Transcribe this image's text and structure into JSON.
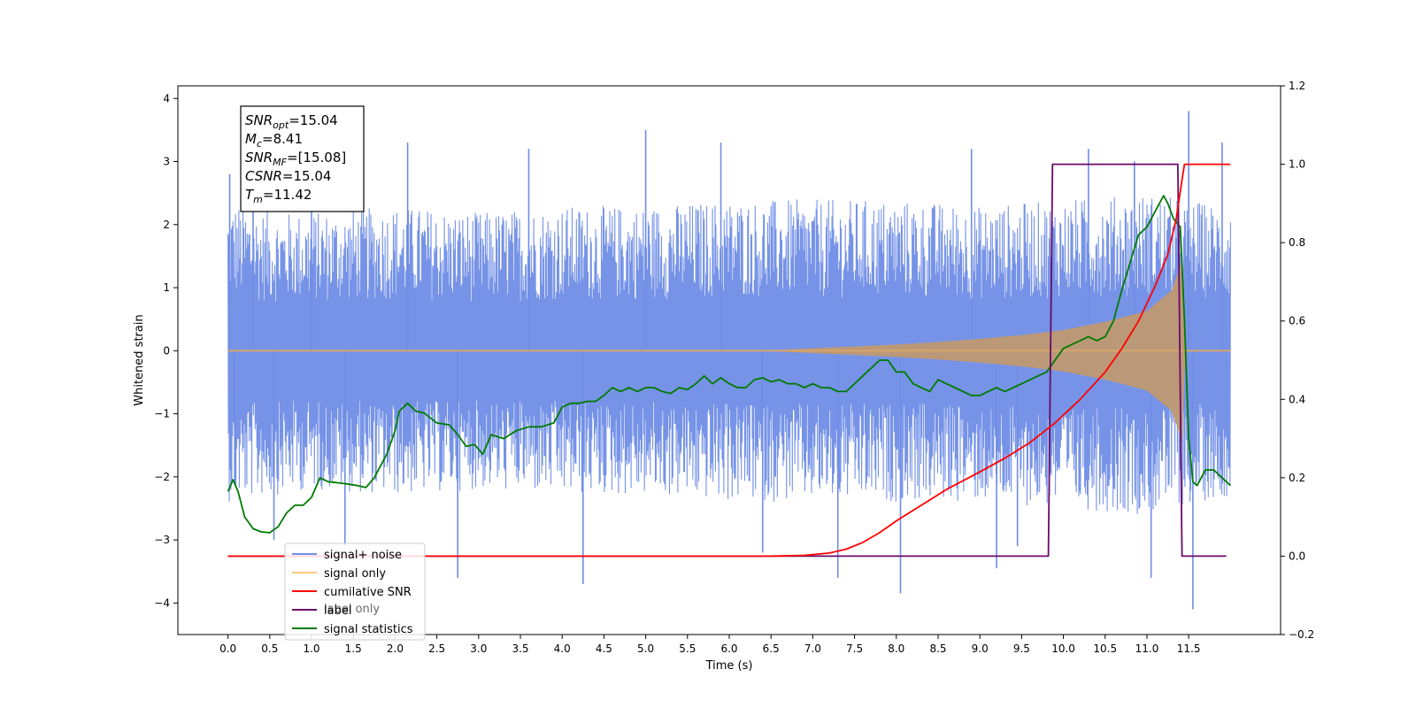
{
  "chart_data": {
    "type": "line",
    "xlabel": "Time (s)",
    "ylabel": "Whitened strain",
    "xlim": [
      -0.6,
      12.6
    ],
    "ylim": [
      -4.5,
      4.2
    ],
    "y2lim": [
      -0.2,
      1.2
    ],
    "xticks": [
      0.0,
      0.5,
      1.0,
      1.5,
      2.0,
      2.5,
      3.0,
      3.5,
      4.0,
      4.5,
      5.0,
      5.5,
      6.0,
      6.5,
      7.0,
      7.5,
      8.0,
      8.5,
      9.0,
      9.5,
      10.0,
      10.5,
      11.0,
      11.5
    ],
    "xtick_labels": [
      "0.0",
      "0.5",
      "1.0",
      "1.5",
      "2.0",
      "2.5",
      "3.0",
      "3.5",
      "4.0",
      "4.5",
      "5.0",
      "5.5",
      "6.0",
      "6.5",
      "7.0",
      "7.5",
      "8.0",
      "8.5",
      "9.0",
      "9.5",
      "10.0",
      "10.5",
      "11.0",
      "11.5"
    ],
    "yticks": [
      -4,
      -3,
      -2,
      -1,
      0,
      1,
      2,
      3,
      4
    ],
    "ytick_labels": [
      "−4",
      "−3",
      "−2",
      "−1",
      "0",
      "1",
      "2",
      "3",
      "4"
    ],
    "y2ticks": [
      -0.2,
      0.0,
      0.2,
      0.4,
      0.6,
      0.8,
      1.0,
      1.2
    ],
    "y2tick_labels": [
      "−0.2",
      "0.0",
      "0.2",
      "0.4",
      "0.6",
      "0.8",
      "1.0",
      "1.2"
    ],
    "grid": false,
    "legend_placement": "lower-left",
    "legend": [
      {
        "label": "signal+ noise",
        "color": "#6f8de6"
      },
      {
        "label": "signal only",
        "color": "#ffc87a"
      },
      {
        "label": "cumilative SNR",
        "color": "#ff0000"
      },
      {
        "label": "label",
        "color": "#6a0a6a"
      },
      {
        "label": "signal statistics",
        "color": "#007a00"
      }
    ],
    "ghost_legend_text": "label only",
    "annotation": [
      {
        "sym": "SNR",
        "sub": "opt",
        "value": "=15.04"
      },
      {
        "sym": "M",
        "sub": "c",
        "value": "=8.41"
      },
      {
        "sym": "SNR",
        "sub": "MF",
        "value": "=[15.08]"
      },
      {
        "sym": "CSNR",
        "sub": "",
        "value": "=15.04"
      },
      {
        "sym": "T",
        "sub": "m",
        "value": "=11.42"
      }
    ],
    "series": [
      {
        "name": "signal+ noise",
        "axis": "left",
        "color": "#6f8de6",
        "x_range": [
          0.0,
          12.0
        ],
        "sample_step": 0.005,
        "band_upper": [
          [
            0.0,
            2.4
          ],
          [
            0.5,
            2.2
          ],
          [
            1.0,
            2.2
          ],
          [
            2.0,
            2.3
          ],
          [
            3.0,
            2.2
          ],
          [
            4.0,
            2.3
          ],
          [
            5.0,
            2.3
          ],
          [
            6.0,
            2.4
          ],
          [
            7.0,
            2.4
          ],
          [
            8.0,
            2.4
          ],
          [
            9.0,
            2.3
          ],
          [
            10.0,
            2.4
          ],
          [
            11.0,
            2.5
          ],
          [
            12.0,
            2.3
          ]
        ],
        "band_lower": [
          [
            0.0,
            -2.4
          ],
          [
            0.5,
            -2.3
          ],
          [
            1.0,
            -2.2
          ],
          [
            2.0,
            -2.3
          ],
          [
            3.0,
            -2.2
          ],
          [
            4.0,
            -2.3
          ],
          [
            5.0,
            -2.3
          ],
          [
            6.0,
            -2.4
          ],
          [
            7.0,
            -2.4
          ],
          [
            8.0,
            -2.4
          ],
          [
            9.0,
            -2.4
          ],
          [
            10.0,
            -2.5
          ],
          [
            11.0,
            -2.6
          ],
          [
            12.0,
            -2.3
          ]
        ],
        "spikes": [
          [
            0.02,
            2.8
          ],
          [
            0.08,
            -2.1
          ],
          [
            0.3,
            2.5
          ],
          [
            0.55,
            -3.0
          ],
          [
            1.0,
            2.7
          ],
          [
            1.4,
            -3.1
          ],
          [
            2.15,
            3.3
          ],
          [
            2.75,
            -3.6
          ],
          [
            3.6,
            3.2
          ],
          [
            4.25,
            -3.7
          ],
          [
            5.0,
            3.5
          ],
          [
            5.9,
            3.3
          ],
          [
            6.4,
            -3.2
          ],
          [
            7.3,
            -3.6
          ],
          [
            8.05,
            -3.85
          ],
          [
            8.9,
            3.2
          ],
          [
            9.2,
            -3.45
          ],
          [
            9.45,
            -3.1
          ],
          [
            10.3,
            3.2
          ],
          [
            10.85,
            3.0
          ],
          [
            11.05,
            -3.6
          ],
          [
            11.5,
            3.8
          ],
          [
            11.55,
            -4.1
          ],
          [
            11.9,
            3.3
          ]
        ]
      },
      {
        "name": "signal only",
        "axis": "left",
        "color": "#c8a06e",
        "x_range": [
          0.0,
          12.0
        ],
        "envelope": [
          [
            0.0,
            0.0
          ],
          [
            6.5,
            0.0
          ],
          [
            7.0,
            0.03
          ],
          [
            7.5,
            0.06
          ],
          [
            8.0,
            0.09
          ],
          [
            8.5,
            0.13
          ],
          [
            9.0,
            0.18
          ],
          [
            9.5,
            0.24
          ],
          [
            10.0,
            0.32
          ],
          [
            10.5,
            0.45
          ],
          [
            11.0,
            0.62
          ],
          [
            11.3,
            0.95
          ],
          [
            11.42,
            1.4
          ],
          [
            11.45,
            0.0
          ],
          [
            12.0,
            0.0
          ]
        ]
      },
      {
        "name": "cumilative SNR",
        "axis": "right",
        "color": "#ff0000",
        "points": [
          [
            0.0,
            0.0
          ],
          [
            6.5,
            0.0
          ],
          [
            6.9,
            0.002
          ],
          [
            7.2,
            0.008
          ],
          [
            7.4,
            0.018
          ],
          [
            7.6,
            0.035
          ],
          [
            7.8,
            0.06
          ],
          [
            8.0,
            0.09
          ],
          [
            8.3,
            0.13
          ],
          [
            8.6,
            0.17
          ],
          [
            9.0,
            0.215
          ],
          [
            9.3,
            0.25
          ],
          [
            9.6,
            0.29
          ],
          [
            9.9,
            0.34
          ],
          [
            10.2,
            0.4
          ],
          [
            10.5,
            0.47
          ],
          [
            10.7,
            0.53
          ],
          [
            10.9,
            0.6
          ],
          [
            11.1,
            0.69
          ],
          [
            11.25,
            0.77
          ],
          [
            11.35,
            0.86
          ],
          [
            11.42,
            0.96
          ],
          [
            11.45,
            1.0
          ],
          [
            12.0,
            1.0
          ]
        ]
      },
      {
        "name": "label",
        "axis": "right",
        "color": "#6a0a6a",
        "points": [
          [
            0.0,
            0.0
          ],
          [
            9.82,
            0.0
          ],
          [
            9.87,
            1.0
          ],
          [
            11.37,
            1.0
          ],
          [
            11.42,
            0.0
          ],
          [
            11.95,
            0.0
          ]
        ]
      },
      {
        "name": "signal statistics",
        "axis": "right",
        "color": "#007a00",
        "points": [
          [
            0.0,
            0.165
          ],
          [
            0.06,
            0.195
          ],
          [
            0.12,
            0.165
          ],
          [
            0.2,
            0.1
          ],
          [
            0.3,
            0.07
          ],
          [
            0.4,
            0.062
          ],
          [
            0.5,
            0.06
          ],
          [
            0.6,
            0.075
          ],
          [
            0.7,
            0.11
          ],
          [
            0.8,
            0.13
          ],
          [
            0.9,
            0.13
          ],
          [
            1.0,
            0.15
          ],
          [
            1.1,
            0.2
          ],
          [
            1.2,
            0.19
          ],
          [
            1.4,
            0.185
          ],
          [
            1.55,
            0.18
          ],
          [
            1.65,
            0.175
          ],
          [
            1.75,
            0.2
          ],
          [
            1.9,
            0.26
          ],
          [
            2.0,
            0.32
          ],
          [
            2.05,
            0.37
          ],
          [
            2.15,
            0.39
          ],
          [
            2.25,
            0.37
          ],
          [
            2.35,
            0.365
          ],
          [
            2.5,
            0.34
          ],
          [
            2.65,
            0.335
          ],
          [
            2.75,
            0.31
          ],
          [
            2.85,
            0.28
          ],
          [
            2.95,
            0.285
          ],
          [
            3.05,
            0.26
          ],
          [
            3.15,
            0.31
          ],
          [
            3.3,
            0.3
          ],
          [
            3.45,
            0.32
          ],
          [
            3.6,
            0.33
          ],
          [
            3.75,
            0.33
          ],
          [
            3.9,
            0.34
          ],
          [
            4.0,
            0.38
          ],
          [
            4.1,
            0.39
          ],
          [
            4.2,
            0.39
          ],
          [
            4.3,
            0.395
          ],
          [
            4.4,
            0.395
          ],
          [
            4.5,
            0.41
          ],
          [
            4.6,
            0.43
          ],
          [
            4.7,
            0.42
          ],
          [
            4.8,
            0.43
          ],
          [
            4.9,
            0.42
          ],
          [
            5.0,
            0.43
          ],
          [
            5.1,
            0.43
          ],
          [
            5.2,
            0.42
          ],
          [
            5.3,
            0.415
          ],
          [
            5.4,
            0.43
          ],
          [
            5.5,
            0.425
          ],
          [
            5.6,
            0.44
          ],
          [
            5.7,
            0.46
          ],
          [
            5.8,
            0.44
          ],
          [
            5.9,
            0.455
          ],
          [
            6.0,
            0.44
          ],
          [
            6.1,
            0.43
          ],
          [
            6.2,
            0.43
          ],
          [
            6.3,
            0.45
          ],
          [
            6.4,
            0.455
          ],
          [
            6.5,
            0.445
          ],
          [
            6.6,
            0.45
          ],
          [
            6.7,
            0.44
          ],
          [
            6.8,
            0.44
          ],
          [
            6.9,
            0.43
          ],
          [
            7.0,
            0.44
          ],
          [
            7.1,
            0.43
          ],
          [
            7.2,
            0.43
          ],
          [
            7.3,
            0.42
          ],
          [
            7.4,
            0.42
          ],
          [
            7.5,
            0.44
          ],
          [
            7.6,
            0.46
          ],
          [
            7.7,
            0.48
          ],
          [
            7.8,
            0.5
          ],
          [
            7.9,
            0.5
          ],
          [
            8.0,
            0.47
          ],
          [
            8.1,
            0.47
          ],
          [
            8.2,
            0.44
          ],
          [
            8.3,
            0.43
          ],
          [
            8.4,
            0.42
          ],
          [
            8.5,
            0.45
          ],
          [
            8.6,
            0.44
          ],
          [
            8.7,
            0.43
          ],
          [
            8.8,
            0.42
          ],
          [
            8.9,
            0.41
          ],
          [
            9.0,
            0.41
          ],
          [
            9.1,
            0.42
          ],
          [
            9.2,
            0.43
          ],
          [
            9.3,
            0.42
          ],
          [
            9.4,
            0.43
          ],
          [
            9.5,
            0.44
          ],
          [
            9.6,
            0.45
          ],
          [
            9.7,
            0.46
          ],
          [
            9.8,
            0.47
          ],
          [
            9.9,
            0.5
          ],
          [
            10.0,
            0.53
          ],
          [
            10.1,
            0.54
          ],
          [
            10.2,
            0.55
          ],
          [
            10.3,
            0.56
          ],
          [
            10.4,
            0.55
          ],
          [
            10.5,
            0.56
          ],
          [
            10.6,
            0.6
          ],
          [
            10.7,
            0.68
          ],
          [
            10.8,
            0.75
          ],
          [
            10.9,
            0.82
          ],
          [
            11.0,
            0.84
          ],
          [
            11.1,
            0.88
          ],
          [
            11.2,
            0.92
          ],
          [
            11.25,
            0.9
          ],
          [
            11.32,
            0.86
          ],
          [
            11.4,
            0.84
          ],
          [
            11.45,
            0.6
          ],
          [
            11.5,
            0.3
          ],
          [
            11.55,
            0.19
          ],
          [
            11.6,
            0.18
          ],
          [
            11.65,
            0.2
          ],
          [
            11.7,
            0.22
          ],
          [
            11.8,
            0.22
          ],
          [
            11.9,
            0.2
          ],
          [
            12.0,
            0.18
          ]
        ]
      }
    ]
  }
}
